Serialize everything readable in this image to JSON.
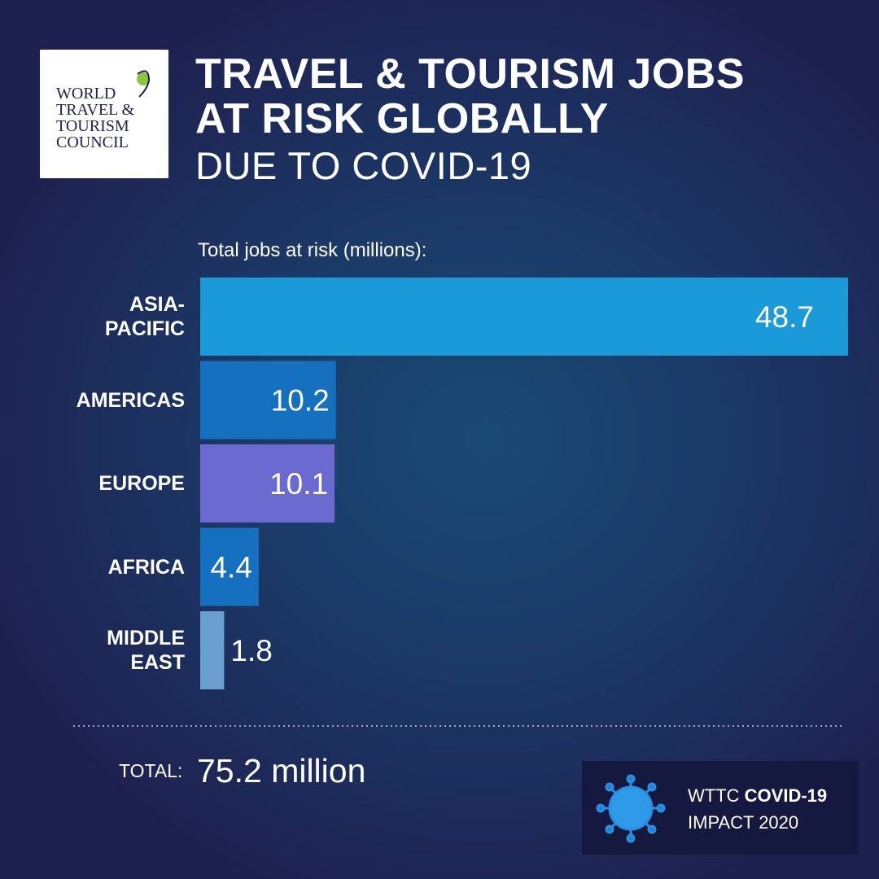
{
  "logo": [
    "WORLD",
    "TRAVEL &",
    "TOURISM",
    "COUNCIL"
  ],
  "chart_data": {
    "type": "bar",
    "orientation": "horizontal",
    "title": "TRAVEL & TOURISM JOBS AT RISK GLOBALLY",
    "subtitle": "DUE TO COVID-19",
    "axis_label": "Total jobs at risk (millions):",
    "categories": [
      "ASIA-PACIFIC",
      "AMERICAS",
      "EUROPE",
      "AFRICA",
      "MIDDLE EAST"
    ],
    "values": [
      48.7,
      10.2,
      10.1,
      4.4,
      1.8
    ],
    "colors": [
      "#1a9ad9",
      "#1570c0",
      "#6b6ad0",
      "#1570c0",
      "#6b9fd0"
    ],
    "total_label": "TOTAL:",
    "total": "75.2 million"
  },
  "badge": {
    "prefix": "WTTC",
    "highlight": "COVID-19",
    "line2": "IMPACT 2020"
  }
}
